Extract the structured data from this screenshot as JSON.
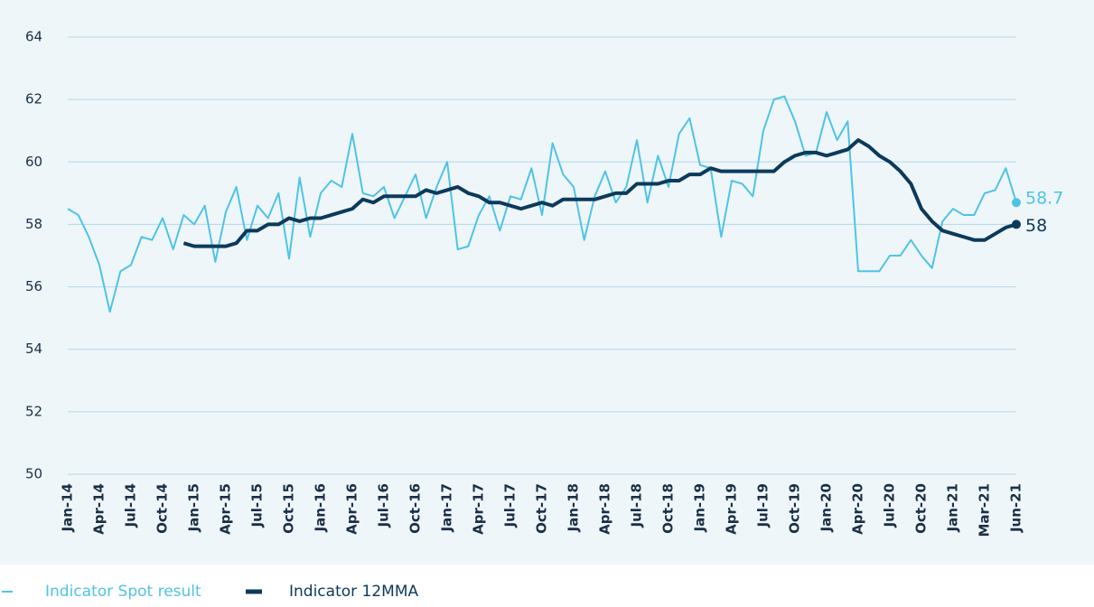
{
  "chart_data": {
    "type": "line",
    "categories": [
      "Jan-14",
      null,
      null,
      "Apr-14",
      null,
      null,
      "Jul-14",
      null,
      null,
      "Oct-14",
      null,
      null,
      "Jan-15",
      null,
      null,
      "Apr-15",
      null,
      null,
      "Jul-15",
      null,
      null,
      "Oct-15",
      null,
      null,
      "Jan-16",
      null,
      null,
      "Apr-16",
      null,
      null,
      "Jul-16",
      null,
      null,
      "Oct-16",
      null,
      null,
      "Jan-17",
      null,
      null,
      "Apr-17",
      null,
      null,
      "Jul-17",
      null,
      null,
      "Oct-17",
      null,
      null,
      "Jan-18",
      null,
      null,
      "Apr-18",
      null,
      null,
      "Jul-18",
      null,
      null,
      "Oct-18",
      null,
      null,
      "Jan-19",
      null,
      null,
      "Apr-19",
      null,
      null,
      "Jul-19",
      null,
      null,
      "Oct-19",
      null,
      null,
      "Jan-20",
      null,
      null,
      "Apr-20",
      null,
      null,
      "Jul-20",
      null,
      null,
      "Oct-20",
      null,
      null,
      "Jan-21",
      null,
      null,
      "Mar-21",
      null,
      null,
      "Jun-21"
    ],
    "series": [
      {
        "name": "Indicator Spot result",
        "color": "#4fc3e6",
        "values": [
          58.5,
          58.3,
          57.6,
          56.7,
          55.2,
          56.5,
          56.7,
          57.6,
          57.5,
          58.2,
          57.2,
          58.3,
          58.0,
          58.6,
          56.8,
          58.4,
          59.2,
          57.5,
          58.6,
          58.2,
          59.0,
          56.9,
          59.5,
          57.6,
          59.0,
          59.4,
          59.2,
          60.9,
          59.0,
          58.9,
          59.2,
          58.2,
          58.9,
          59.6,
          58.2,
          59.2,
          60.0,
          57.2,
          57.3,
          58.3,
          58.9,
          57.8,
          58.9,
          58.8,
          59.8,
          58.3,
          60.6,
          59.6,
          59.2,
          57.5,
          58.9,
          59.7,
          58.7,
          59.2,
          60.7,
          58.7,
          60.2,
          59.2,
          60.9,
          61.4,
          59.9,
          59.8,
          57.6,
          59.4,
          59.3,
          58.9,
          61.0,
          62.0,
          62.1,
          61.3,
          60.2,
          60.3,
          61.6,
          60.7,
          61.3,
          56.5,
          56.5,
          56.5,
          57.0,
          57.0,
          57.5,
          57.0,
          56.6,
          58.1,
          58.5,
          58.3,
          58.3,
          59.0,
          59.1,
          59.8,
          58.7
        ]
      },
      {
        "name": "Indicator 12MMA",
        "color": "#0c3a5b",
        "values": [
          null,
          null,
          null,
          null,
          null,
          null,
          null,
          null,
          null,
          null,
          null,
          57.4,
          57.3,
          57.3,
          57.3,
          57.3,
          57.4,
          57.8,
          57.8,
          58.0,
          58.0,
          58.2,
          58.1,
          58.2,
          58.2,
          58.3,
          58.4,
          58.5,
          58.8,
          58.7,
          58.9,
          58.9,
          58.9,
          58.9,
          59.1,
          59.0,
          59.1,
          59.2,
          59.0,
          58.9,
          58.7,
          58.7,
          58.6,
          58.5,
          58.6,
          58.7,
          58.6,
          58.8,
          58.8,
          58.8,
          58.8,
          58.9,
          59.0,
          59.0,
          59.3,
          59.3,
          59.3,
          59.4,
          59.4,
          59.6,
          59.6,
          59.8,
          59.7,
          59.7,
          59.7,
          59.7,
          59.7,
          59.7,
          60.0,
          60.2,
          60.3,
          60.3,
          60.2,
          60.3,
          60.4,
          60.7,
          60.5,
          60.2,
          60.0,
          59.7,
          59.3,
          58.5,
          58.1,
          57.8,
          57.7,
          57.6,
          57.5,
          57.5,
          57.7,
          57.9,
          58.0
        ]
      }
    ],
    "ylim": [
      50,
      64
    ],
    "yticks": [
      50,
      52,
      54,
      56,
      58,
      60,
      62,
      64
    ],
    "grid": true,
    "legend": "bottom-left"
  }
}
